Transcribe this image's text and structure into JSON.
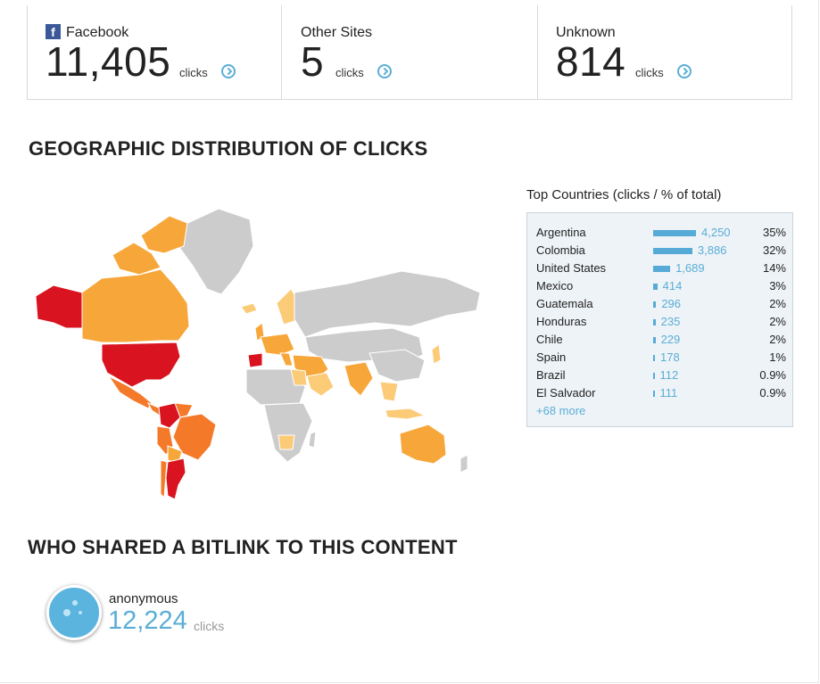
{
  "referrers": [
    {
      "name": "Facebook",
      "icon": "facebook-icon",
      "count": "11,405",
      "unit": "clicks"
    },
    {
      "name": "Other Sites",
      "count": "5",
      "unit": "clicks"
    },
    {
      "name": "Unknown",
      "count": "814",
      "unit": "clicks"
    }
  ],
  "geo": {
    "title": "GEOGRAPHIC DISTRIBUTION OF CLICKS",
    "top_countries_title": "Top Countries (clicks / % of total)",
    "countries": [
      {
        "name": "Argentina",
        "clicks": "4,250",
        "value": 4250,
        "pct": "35%"
      },
      {
        "name": "Colombia",
        "clicks": "3,886",
        "value": 3886,
        "pct": "32%"
      },
      {
        "name": "United States",
        "clicks": "1,689",
        "value": 1689,
        "pct": "14%"
      },
      {
        "name": "Mexico",
        "clicks": "414",
        "value": 414,
        "pct": "3%"
      },
      {
        "name": "Guatemala",
        "clicks": "296",
        "value": 296,
        "pct": "2%"
      },
      {
        "name": "Honduras",
        "clicks": "235",
        "value": 235,
        "pct": "2%"
      },
      {
        "name": "Chile",
        "clicks": "229",
        "value": 229,
        "pct": "2%"
      },
      {
        "name": "Spain",
        "clicks": "178",
        "value": 178,
        "pct": "1%"
      },
      {
        "name": "Brazil",
        "clicks": "112",
        "value": 112,
        "pct": "0.9%"
      },
      {
        "name": "El Salvador",
        "clicks": "111",
        "value": 111,
        "pct": "0.9%"
      }
    ],
    "more_link": "+68 more",
    "map_colors": {
      "high": "#d9131f",
      "mid": "#f47a2a",
      "low": "#f7a73a",
      "lowest": "#fbcb78",
      "none": "#cccccc"
    }
  },
  "sharers": {
    "title": "WHO SHARED A BITLINK TO THIS CONTENT",
    "items": [
      {
        "name": "anonymous",
        "count": "12,224",
        "unit": "clicks",
        "avatar_color": "#5ab4de"
      }
    ]
  },
  "colors": {
    "accent": "#5aaed6",
    "bar": "#55aad8",
    "panel_bg": "#eef3f7"
  }
}
